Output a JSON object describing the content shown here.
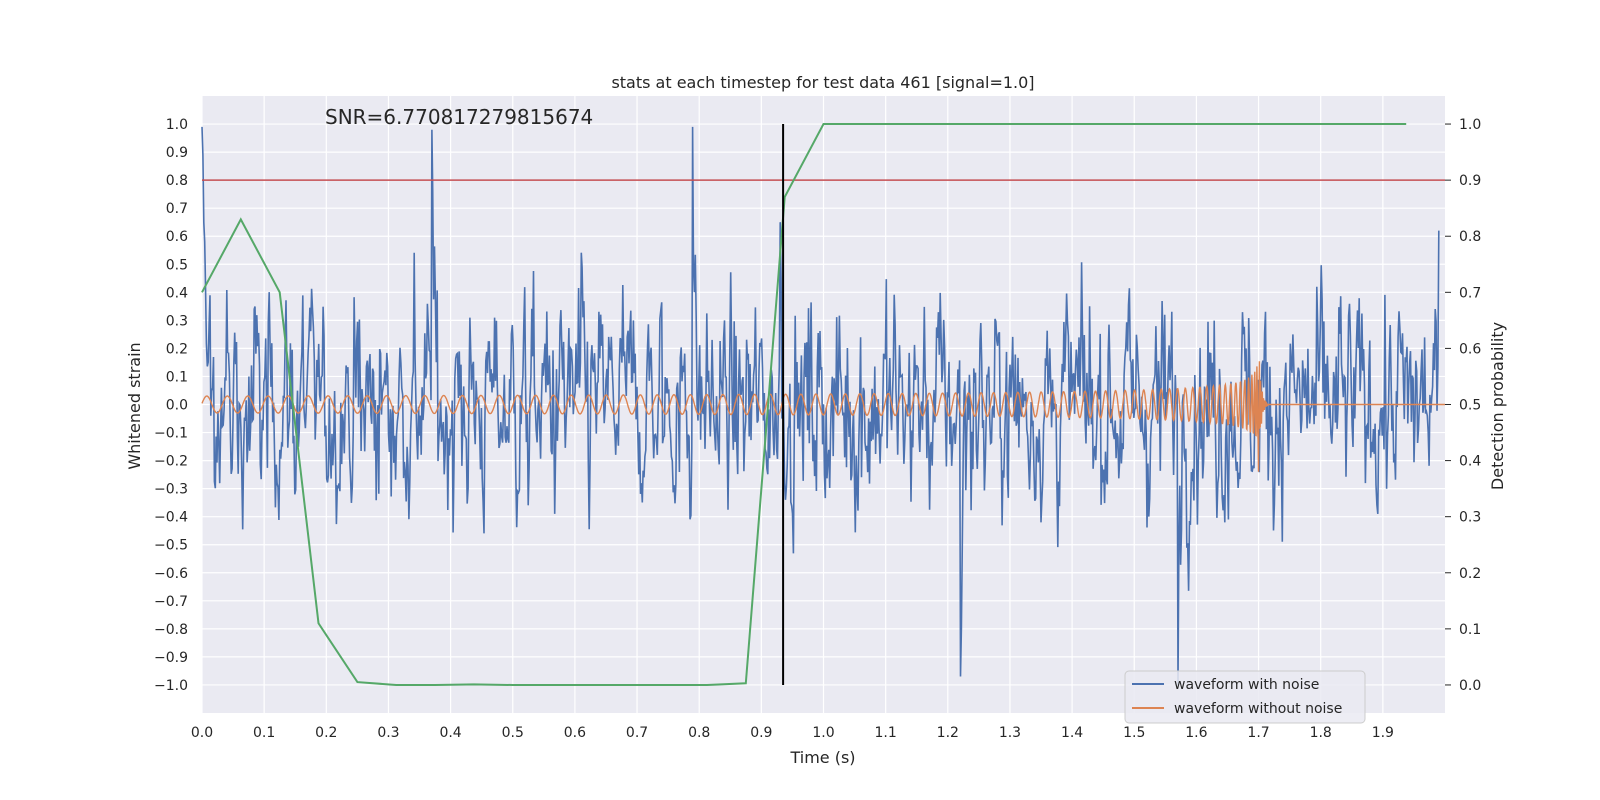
{
  "chart_data": {
    "type": "line",
    "title": "stats at each timestep for test data 461 [signal=1.0]",
    "xlabel": "Time (s)",
    "ylabel": "Whitened strain",
    "y2label": "Detection probability",
    "annotation": "SNR=6.770817279815674",
    "xlim": [
      0.0,
      2.0
    ],
    "ylim": [
      -1.1,
      1.1
    ],
    "y2lim": [
      -0.05,
      1.05
    ],
    "x_ticks": [
      "0.0",
      "0.1",
      "0.2",
      "0.3",
      "0.4",
      "0.5",
      "0.6",
      "0.7",
      "0.8",
      "0.9",
      "1.0",
      "1.1",
      "1.2",
      "1.3",
      "1.4",
      "1.5",
      "1.6",
      "1.7",
      "1.8",
      "1.9"
    ],
    "y_ticks": [
      "1.0",
      "0.9",
      "0.8",
      "0.7",
      "0.6",
      "0.5",
      "0.4",
      "0.3",
      "0.2",
      "0.1",
      "0.0",
      "−0.1",
      "−0.2",
      "−0.3",
      "−0.4",
      "−0.5",
      "−0.6",
      "−0.7",
      "−0.8",
      "−0.9",
      "−1.0"
    ],
    "y2_ticks": [
      "1.0",
      "0.9",
      "0.8",
      "0.7",
      "0.6",
      "0.5",
      "0.4",
      "0.3",
      "0.2",
      "0.1",
      "0.0"
    ],
    "grid": true,
    "legend_position": "lower-right",
    "legend": [
      {
        "label": "waveform with noise",
        "color": "#4c72b0"
      },
      {
        "label": "waveform without noise",
        "color": "#dd8452"
      }
    ],
    "threshold_line": {
      "y": 0.8,
      "color": "#c44e52"
    },
    "event_marker": {
      "x": 0.935,
      "y_from": -1.0,
      "y_to": 1.0,
      "color": "#000000"
    },
    "noisy_waveform": {
      "color": "#4c72b0",
      "t_start": 0.0,
      "t_end": 1.99,
      "peak_envelope": [
        {
          "t": 0.0,
          "y": 0.99
        },
        {
          "t": 0.37,
          "y": 0.98
        },
        {
          "t": 0.79,
          "y": 0.99
        },
        {
          "t": 0.93,
          "y": 0.65
        },
        {
          "t": 1.57,
          "y": -1.0
        },
        {
          "t": 1.22,
          "y": -0.97
        },
        {
          "t": 1.99,
          "y": 0.62
        }
      ],
      "typical_amplitude": 0.6
    },
    "clean_waveform": {
      "color": "#dd8452",
      "t_start": 0.0,
      "t_merger": 1.7,
      "amplitude_start": 0.03,
      "amplitude_peak": 0.17,
      "min_at_merger": -0.24,
      "after_merger": 0.0
    },
    "detection_probability": {
      "color": "#55a868",
      "points": [
        [
          0.0,
          0.7
        ],
        [
          0.0625,
          0.83
        ],
        [
          0.125,
          0.7
        ],
        [
          0.1875,
          0.11
        ],
        [
          0.25,
          0.005
        ],
        [
          0.3125,
          0.0
        ],
        [
          0.375,
          0.0
        ],
        [
          0.4375,
          0.001
        ],
        [
          0.5,
          0.0
        ],
        [
          0.5625,
          0.0
        ],
        [
          0.625,
          0.0
        ],
        [
          0.6875,
          0.0
        ],
        [
          0.75,
          0.0
        ],
        [
          0.8125,
          0.0
        ],
        [
          0.875,
          0.003
        ],
        [
          0.9375,
          0.87
        ],
        [
          1.0,
          1.0
        ],
        [
          1.0625,
          1.0
        ],
        [
          1.125,
          1.0
        ],
        [
          1.1875,
          1.0
        ],
        [
          1.25,
          1.0
        ],
        [
          1.3125,
          1.0
        ],
        [
          1.375,
          1.0
        ],
        [
          1.4375,
          1.0
        ],
        [
          1.5,
          1.0
        ],
        [
          1.5625,
          1.0
        ],
        [
          1.625,
          1.0
        ],
        [
          1.6875,
          1.0
        ],
        [
          1.75,
          1.0
        ],
        [
          1.8125,
          1.0
        ],
        [
          1.875,
          1.0
        ],
        [
          1.9375,
          1.0
        ]
      ]
    }
  }
}
